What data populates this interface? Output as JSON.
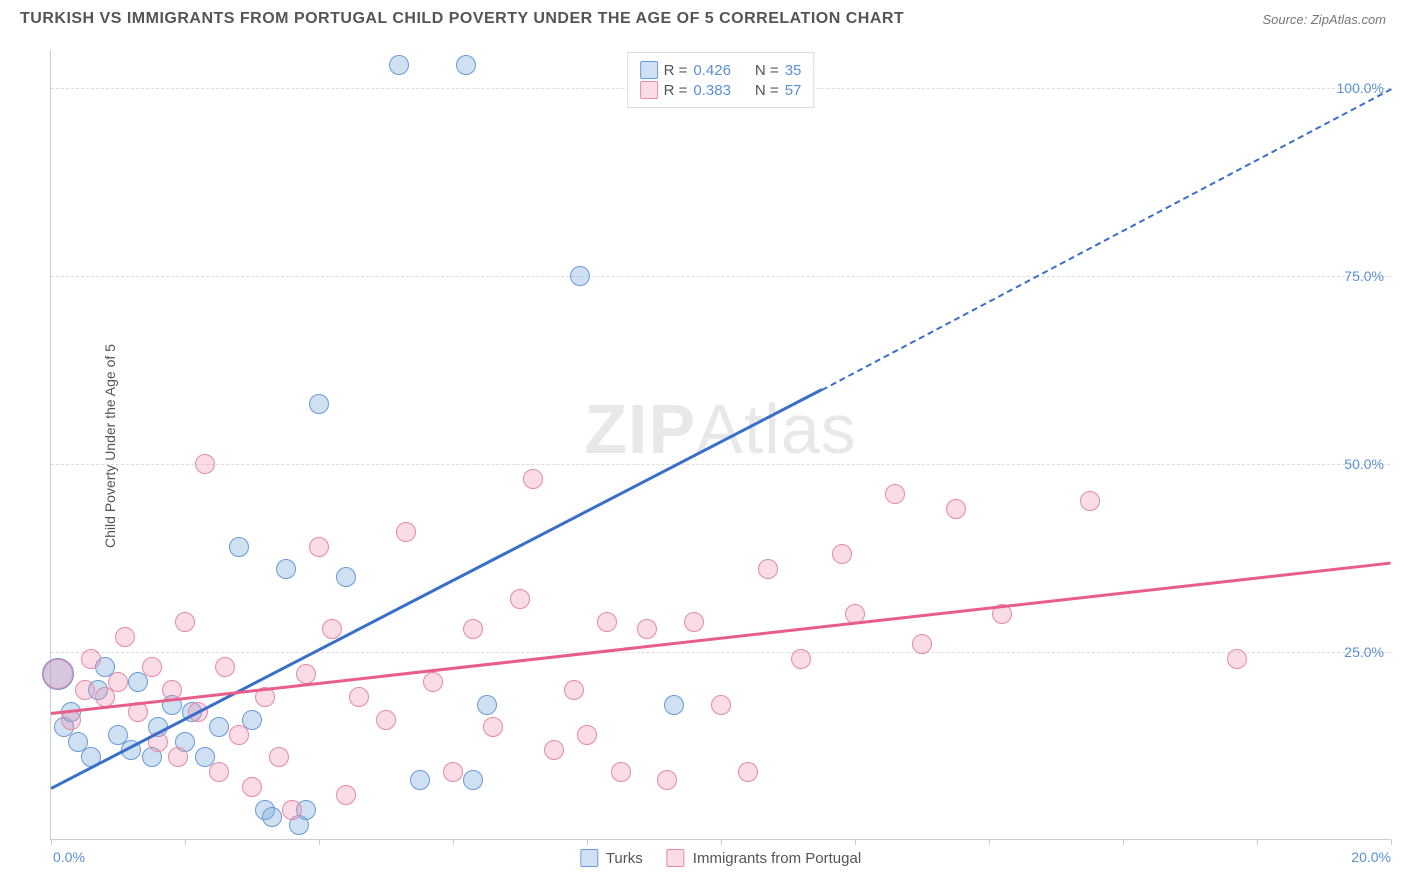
{
  "header": {
    "title": "TURKISH VS IMMIGRANTS FROM PORTUGAL CHILD POVERTY UNDER THE AGE OF 5 CORRELATION CHART",
    "source": "Source: ZipAtlas.com"
  },
  "chart": {
    "type": "scatter",
    "ylabel": "Child Poverty Under the Age of 5",
    "xlim": [
      0,
      20
    ],
    "ylim": [
      0,
      105
    ],
    "y_ticks": [
      25,
      50,
      75,
      100
    ],
    "y_tick_labels": [
      "25.0%",
      "50.0%",
      "75.0%",
      "100.0%"
    ],
    "x_ticks": [
      0,
      2,
      4,
      6,
      8,
      10,
      12,
      14,
      16,
      18,
      20
    ],
    "x_tick_label_left": "0.0%",
    "x_tick_label_right": "20.0%",
    "background_color": "#ffffff",
    "grid_color": "#dddddd",
    "axis_color": "#cccccc",
    "tick_label_color": "#5b8fd6",
    "label_color": "#555555",
    "watermark": "ZIPAtlas",
    "series": [
      {
        "name": "Turks",
        "color_fill": "rgba(120,165,220,0.35)",
        "color_stroke": "#6a9bd8",
        "trend_color": "#3a6fc9",
        "trend": {
          "x1": 0,
          "y1": 7,
          "x2": 11.5,
          "y2": 60,
          "dashed_after_x": 11.5,
          "x2_dash": 20,
          "y2_dash": 100
        },
        "r_label": "R = ",
        "r_value": "0.426",
        "n_label": "N = ",
        "n_value": "35",
        "marker_radius": 10,
        "points": [
          {
            "x": 0.1,
            "y": 22,
            "r": 16
          },
          {
            "x": 0.2,
            "y": 15
          },
          {
            "x": 0.3,
            "y": 17
          },
          {
            "x": 0.4,
            "y": 13
          },
          {
            "x": 0.6,
            "y": 11
          },
          {
            "x": 0.7,
            "y": 20
          },
          {
            "x": 0.8,
            "y": 23
          },
          {
            "x": 1.0,
            "y": 14
          },
          {
            "x": 1.2,
            "y": 12
          },
          {
            "x": 1.3,
            "y": 21
          },
          {
            "x": 1.5,
            "y": 11
          },
          {
            "x": 1.6,
            "y": 15
          },
          {
            "x": 1.8,
            "y": 18
          },
          {
            "x": 2.0,
            "y": 13
          },
          {
            "x": 2.1,
            "y": 17
          },
          {
            "x": 2.3,
            "y": 11
          },
          {
            "x": 2.5,
            "y": 15
          },
          {
            "x": 2.8,
            "y": 39
          },
          {
            "x": 3.0,
            "y": 16
          },
          {
            "x": 3.2,
            "y": 4
          },
          {
            "x": 3.3,
            "y": 3
          },
          {
            "x": 3.5,
            "y": 36
          },
          {
            "x": 3.7,
            "y": 2
          },
          {
            "x": 3.8,
            "y": 4
          },
          {
            "x": 4.0,
            "y": 58
          },
          {
            "x": 4.4,
            "y": 35
          },
          {
            "x": 5.2,
            "y": 103
          },
          {
            "x": 5.5,
            "y": 8
          },
          {
            "x": 6.2,
            "y": 103
          },
          {
            "x": 6.3,
            "y": 8
          },
          {
            "x": 6.5,
            "y": 18
          },
          {
            "x": 7.9,
            "y": 75
          },
          {
            "x": 9.3,
            "y": 18
          }
        ]
      },
      {
        "name": "Immigrants from Portugal",
        "color_fill": "rgba(235,140,170,0.3)",
        "color_stroke": "#e68aa8",
        "trend_color": "#e85d8a",
        "trend": {
          "x1": 0,
          "y1": 17,
          "x2": 20,
          "y2": 37
        },
        "r_label": "R = ",
        "r_value": "0.383",
        "n_label": "N = ",
        "n_value": "57",
        "marker_radius": 10,
        "points": [
          {
            "x": 0.1,
            "y": 22,
            "r": 15
          },
          {
            "x": 0.3,
            "y": 16
          },
          {
            "x": 0.5,
            "y": 20
          },
          {
            "x": 0.6,
            "y": 24
          },
          {
            "x": 0.8,
            "y": 19
          },
          {
            "x": 1.0,
            "y": 21
          },
          {
            "x": 1.1,
            "y": 27
          },
          {
            "x": 1.3,
            "y": 17
          },
          {
            "x": 1.5,
            "y": 23
          },
          {
            "x": 1.6,
            "y": 13
          },
          {
            "x": 1.8,
            "y": 20
          },
          {
            "x": 1.9,
            "y": 11
          },
          {
            "x": 2.0,
            "y": 29
          },
          {
            "x": 2.2,
            "y": 17
          },
          {
            "x": 2.3,
            "y": 50
          },
          {
            "x": 2.5,
            "y": 9
          },
          {
            "x": 2.6,
            "y": 23
          },
          {
            "x": 2.8,
            "y": 14
          },
          {
            "x": 3.0,
            "y": 7
          },
          {
            "x": 3.2,
            "y": 19
          },
          {
            "x": 3.4,
            "y": 11
          },
          {
            "x": 3.6,
            "y": 4
          },
          {
            "x": 3.8,
            "y": 22
          },
          {
            "x": 4.0,
            "y": 39
          },
          {
            "x": 4.2,
            "y": 28
          },
          {
            "x": 4.4,
            "y": 6
          },
          {
            "x": 4.6,
            "y": 19
          },
          {
            "x": 5.0,
            "y": 16
          },
          {
            "x": 5.3,
            "y": 41
          },
          {
            "x": 5.7,
            "y": 21
          },
          {
            "x": 6.0,
            "y": 9
          },
          {
            "x": 6.3,
            "y": 28
          },
          {
            "x": 6.6,
            "y": 15
          },
          {
            "x": 7.0,
            "y": 32
          },
          {
            "x": 7.2,
            "y": 48
          },
          {
            "x": 7.5,
            "y": 12
          },
          {
            "x": 7.8,
            "y": 20
          },
          {
            "x": 8.0,
            "y": 14
          },
          {
            "x": 8.3,
            "y": 29
          },
          {
            "x": 8.5,
            "y": 9
          },
          {
            "x": 8.9,
            "y": 28
          },
          {
            "x": 9.2,
            "y": 8
          },
          {
            "x": 9.6,
            "y": 29
          },
          {
            "x": 10.0,
            "y": 18
          },
          {
            "x": 10.4,
            "y": 9
          },
          {
            "x": 10.7,
            "y": 36
          },
          {
            "x": 11.2,
            "y": 24
          },
          {
            "x": 11.8,
            "y": 38
          },
          {
            "x": 12.0,
            "y": 30
          },
          {
            "x": 12.6,
            "y": 46
          },
          {
            "x": 13.0,
            "y": 26
          },
          {
            "x": 13.5,
            "y": 44
          },
          {
            "x": 14.2,
            "y": 30
          },
          {
            "x": 15.5,
            "y": 45
          },
          {
            "x": 17.7,
            "y": 24
          }
        ]
      }
    ]
  }
}
